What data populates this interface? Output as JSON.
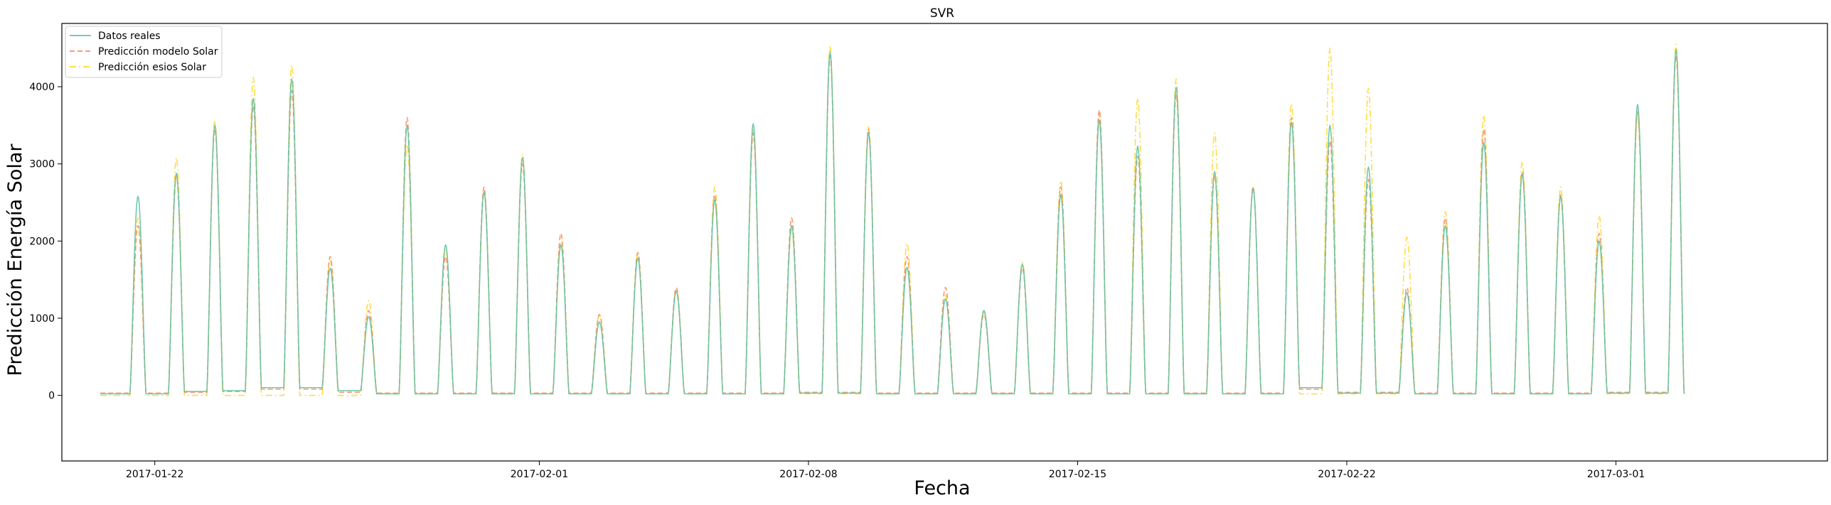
{
  "chart_data": {
    "type": "line",
    "title": "SVR",
    "xlabel": "Fecha",
    "ylabel": "Predicción Energía Solar",
    "xlim": [
      "2017-01-19T14:00",
      "2017-03-06T12:00"
    ],
    "ylim": [
      -850,
      4820
    ],
    "yticks": [
      0,
      1000,
      2000,
      3000,
      4000
    ],
    "xticks": [
      "2017-01-22",
      "2017-02-01",
      "2017-02-08",
      "2017-02-15",
      "2017-02-22",
      "2017-03-01"
    ],
    "grid": false,
    "legend_position": "top-left",
    "x_start": "2017-01-21",
    "x_step": "1 day",
    "series": [
      {
        "name": "Datos reales",
        "color": "#66c2a5",
        "dash": "solid",
        "daily_peaks": [
          2580,
          2880,
          3500,
          3850,
          4100,
          1650,
          1020,
          3500,
          1950,
          2630,
          3080,
          1950,
          950,
          1780,
          1350,
          2530,
          3520,
          2200,
          4450,
          3400,
          1660,
          1250,
          1100,
          1700,
          2600,
          3570,
          3230,
          3990,
          2900,
          2680,
          3540,
          3500,
          2960,
          1330,
          2200,
          3280,
          2870,
          2580,
          2000,
          3770,
          4480
        ],
        "night_values": [
          20,
          50,
          60,
          100,
          100,
          60,
          20,
          20,
          20,
          20,
          20,
          20,
          20,
          20,
          20,
          20,
          20,
          30,
          30,
          20,
          20,
          20,
          20,
          20,
          20,
          20,
          20,
          20,
          20,
          20,
          100,
          30,
          30,
          20,
          20,
          20,
          20,
          20,
          30,
          30
        ]
      },
      {
        "name": "Predicción modelo Solar",
        "color": "#fc8d62",
        "dash": "dashed",
        "daily_peaks": [
          2200,
          2850,
          3450,
          3750,
          3950,
          1800,
          1100,
          3600,
          1800,
          2700,
          3000,
          2100,
          1050,
          1850,
          1400,
          2600,
          3400,
          2300,
          4400,
          3450,
          1800,
          1400,
          1050,
          1650,
          2700,
          3700,
          3100,
          3900,
          2850,
          2700,
          3600,
          3300,
          2800,
          1400,
          2300,
          3450,
          2900,
          2600,
          2100,
          3700,
          4400
        ],
        "night_values": [
          30,
          40,
          50,
          80,
          80,
          40,
          30,
          30,
          30,
          30,
          30,
          30,
          30,
          30,
          30,
          30,
          30,
          40,
          40,
          30,
          30,
          30,
          30,
          30,
          30,
          30,
          30,
          30,
          30,
          30,
          80,
          40,
          40,
          30,
          30,
          30,
          30,
          30,
          40,
          40
        ]
      },
      {
        "name": "Predicción esios Solar",
        "color": "#ffd92f",
        "dash": "dashdot",
        "daily_peaks": [
          2300,
          3080,
          3560,
          4120,
          4280,
          1750,
          1230,
          3250,
          1900,
          2650,
          3130,
          2000,
          1050,
          1850,
          1380,
          2700,
          3440,
          2150,
          4520,
          3480,
          1970,
          1300,
          1080,
          1720,
          2780,
          3650,
          3850,
          4100,
          3400,
          2700,
          3780,
          4500,
          3980,
          2050,
          2380,
          3630,
          3030,
          2700,
          2330,
          3630,
          4550
        ],
        "night_values": [
          0,
          0,
          0,
          0,
          0,
          0,
          20,
          20,
          20,
          20,
          20,
          20,
          20,
          20,
          20,
          20,
          20,
          20,
          20,
          20,
          20,
          20,
          20,
          20,
          20,
          20,
          20,
          20,
          20,
          20,
          20,
          20,
          20,
          20,
          20,
          20,
          20,
          20,
          20,
          20
        ]
      }
    ]
  }
}
